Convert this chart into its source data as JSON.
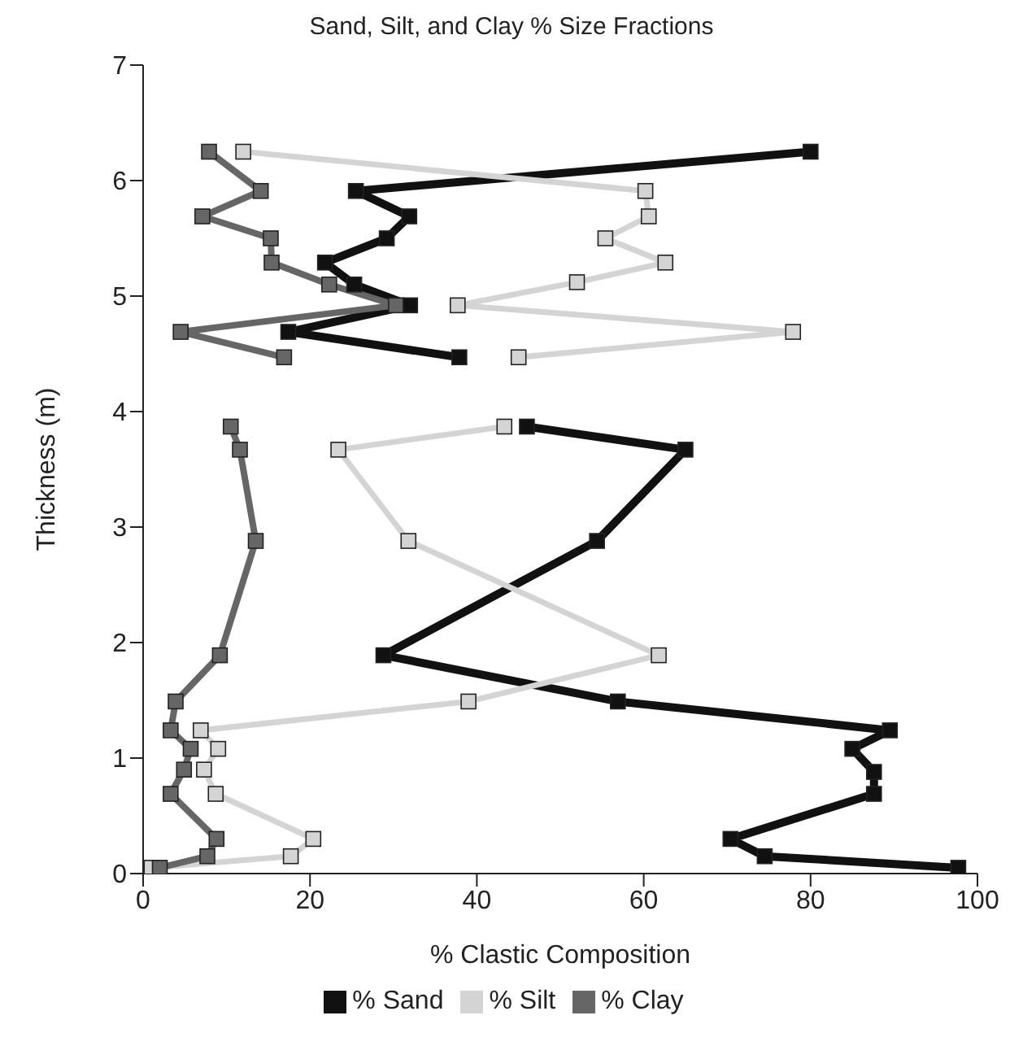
{
  "chart_data": {
    "type": "line",
    "title": "Sand, Silt, and Clay % Size Fractions",
    "xlabel": "% Clastic Composition",
    "ylabel": "Thickness (m)",
    "series": [
      {
        "name": "% Sand",
        "color": "#111111",
        "x": [
          97.7,
          74.5,
          70.4,
          87.6,
          87.6,
          85,
          89.5,
          56.9,
          28.8,
          54.4,
          65,
          46,
          null,
          37.9,
          17.4,
          32,
          25.3,
          21.8,
          29.2,
          31.9,
          25.5,
          80
        ],
        "values": [
          0.05,
          0.15,
          0.3,
          0.69,
          0.88,
          1.08,
          1.24,
          1.49,
          1.89,
          2.88,
          3.67,
          3.87,
          null,
          4.47,
          4.69,
          4.92,
          5.1,
          5.29,
          5.5,
          5.69,
          5.91,
          6.25
        ]
      },
      {
        "name": "% Silt",
        "color": "#d4d4d4",
        "x": [
          1,
          17.7,
          20.4,
          8.7,
          7.3,
          9,
          6.9,
          39,
          61.8,
          31.8,
          23.4,
          43.3,
          null,
          45,
          77.9,
          37.7,
          52,
          62.6,
          55.4,
          60.6,
          60.2,
          12
        ],
        "values": [
          0.05,
          0.15,
          0.3,
          0.69,
          0.9,
          1.08,
          1.24,
          1.49,
          1.89,
          2.88,
          3.67,
          3.87,
          null,
          4.47,
          4.69,
          4.92,
          5.12,
          5.29,
          5.5,
          5.69,
          5.91,
          6.25
        ]
      },
      {
        "name": "% Clay",
        "color": "#666666",
        "x": [
          2,
          7.7,
          8.8,
          3.3,
          4.9,
          5.7,
          3.3,
          3.9,
          9.2,
          13.5,
          11.6,
          10.5,
          null,
          16.9,
          4.5,
          30.3,
          22.3,
          15.4,
          15.3,
          7.1,
          14.1,
          7.9
        ],
        "values": [
          0.05,
          0.15,
          0.3,
          0.69,
          0.9,
          1.08,
          1.24,
          1.49,
          1.89,
          2.88,
          3.67,
          3.87,
          null,
          4.47,
          4.69,
          4.92,
          5.1,
          5.29,
          5.5,
          5.69,
          5.91,
          6.25
        ]
      }
    ],
    "xlim": [
      0,
      100
    ],
    "xticks": [
      0,
      20,
      40,
      60,
      80,
      100
    ],
    "ylim": [
      0,
      7
    ],
    "yticks": [
      0,
      1,
      2,
      3,
      4,
      5,
      6,
      7
    ],
    "grid": false,
    "legend": "bottom",
    "marker": "square",
    "line_style": "solid"
  }
}
